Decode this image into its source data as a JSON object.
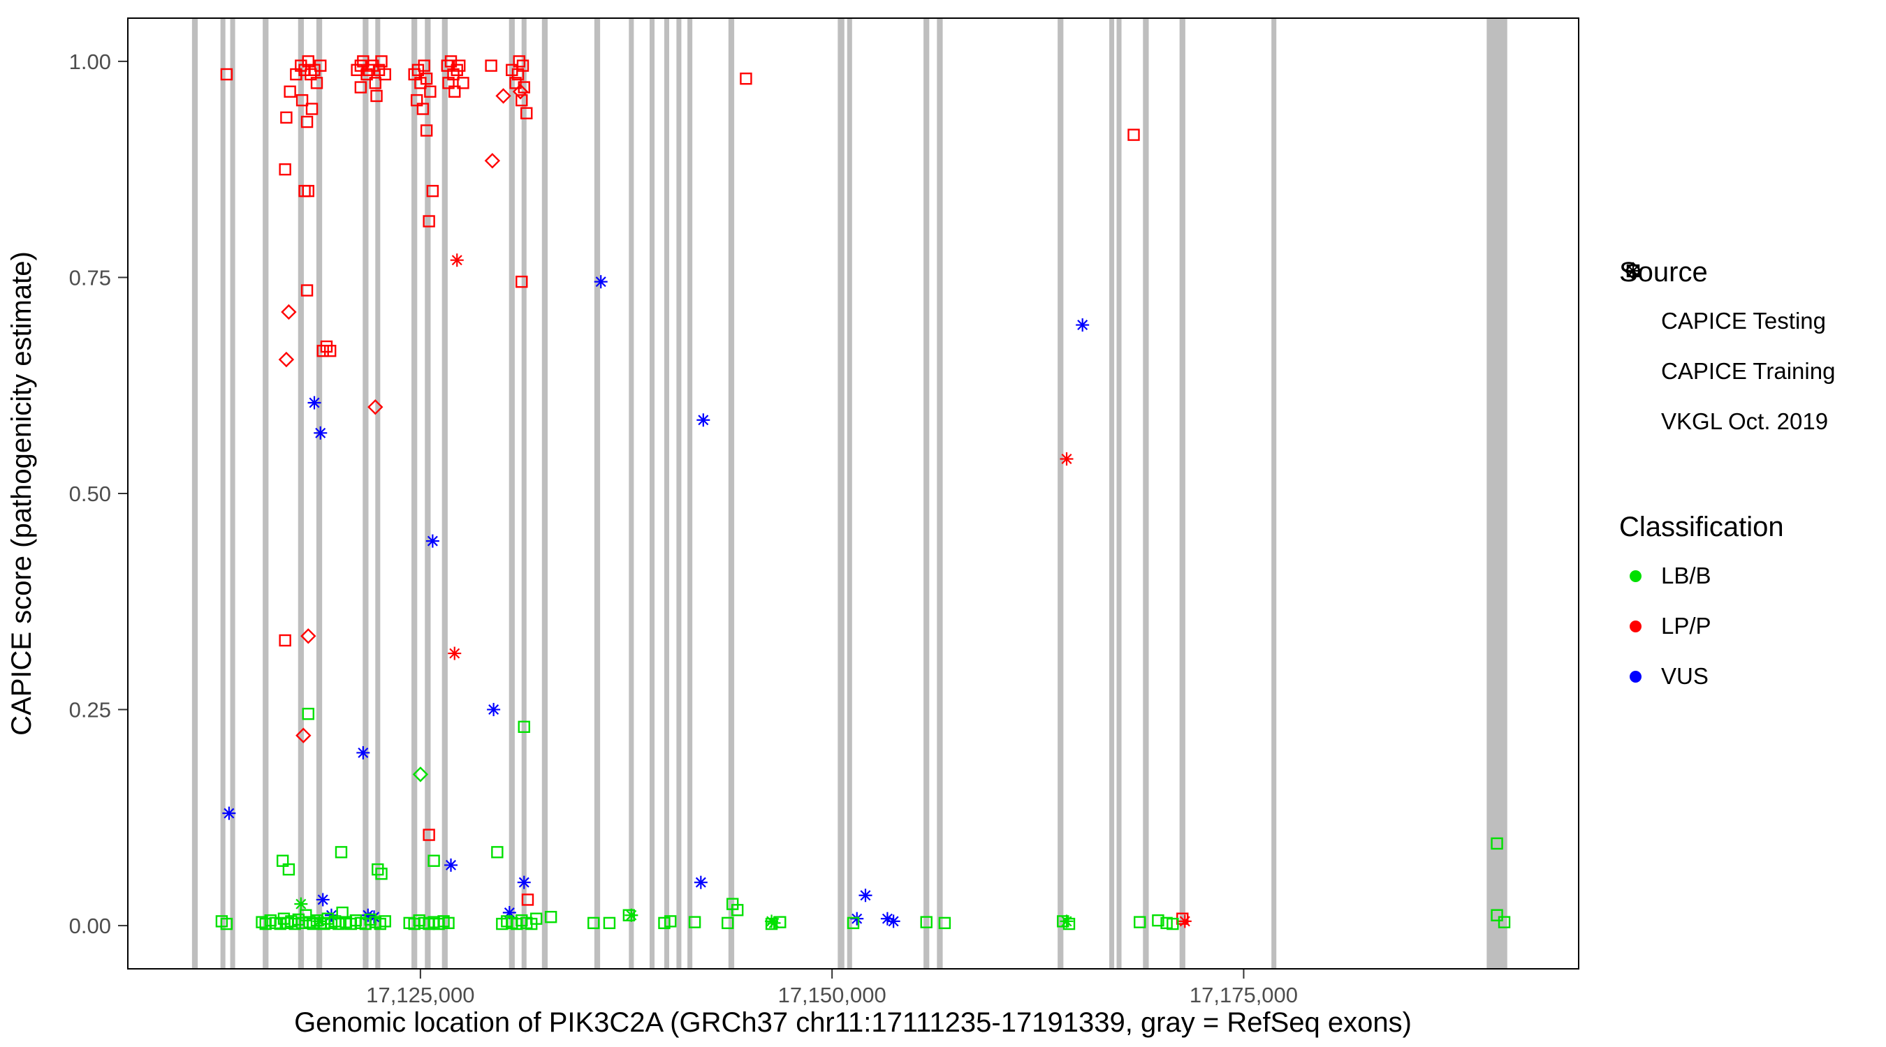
{
  "chart_data": {
    "type": "scatter",
    "title": "",
    "xlabel": "Genomic location of PIK3C2A (GRCh37 chr11:17111235-17191339, gray = RefSeq exons)",
    "ylabel": "CAPICE score (pathogenicity estimate)",
    "xlim": [
      17107230,
      17195344
    ],
    "ylim": [
      -0.05,
      1.05
    ],
    "grid": false,
    "legend_position": "right",
    "axis_text_color": "#4D4D4D",
    "border_color": "#000000",
    "exon_color": "#BEBEBE",
    "x_ticks": [
      {
        "value": 17125000,
        "label": "17,125,000"
      },
      {
        "value": 17150000,
        "label": "17,150,000"
      },
      {
        "value": 17175000,
        "label": "17,175,000"
      }
    ],
    "y_ticks": [
      {
        "value": 0.0,
        "label": "0.00"
      },
      {
        "value": 0.25,
        "label": "0.25"
      },
      {
        "value": 0.5,
        "label": "0.50"
      },
      {
        "value": 0.75,
        "label": "0.75"
      },
      {
        "value": 1.0,
        "label": "1.00"
      }
    ],
    "class_colors": {
      "LB/B": "#00E000",
      "LP/P": "#FF0000",
      "VUS": "#0000FF"
    },
    "shape_for_source": {
      "CAPICE Testing": "di",
      "CAPICE Training": "sq",
      "VKGL Oct. 2019": "as"
    },
    "exons": [
      [
        17111302,
        350
      ],
      [
        17113006,
        300
      ],
      [
        17113598,
        300
      ],
      [
        17115598,
        350
      ],
      [
        17117745,
        350
      ],
      [
        17118856,
        350
      ],
      [
        17121670,
        350
      ],
      [
        17122410,
        300
      ],
      [
        17124631,
        350
      ],
      [
        17125446,
        350
      ],
      [
        17126482,
        350
      ],
      [
        17130555,
        350
      ],
      [
        17131295,
        300
      ],
      [
        17132554,
        350
      ],
      [
        17135738,
        350
      ],
      [
        17137811,
        300
      ],
      [
        17139070,
        300
      ],
      [
        17139958,
        300
      ],
      [
        17140699,
        300
      ],
      [
        17141365,
        300
      ],
      [
        17143883,
        350
      ],
      [
        17150547,
        400
      ],
      [
        17151066,
        300
      ],
      [
        17155730,
        350
      ],
      [
        17156545,
        350
      ],
      [
        17163876,
        350
      ],
      [
        17166986,
        300
      ],
      [
        17167430,
        300
      ],
      [
        17169059,
        350
      ],
      [
        17171280,
        350
      ],
      [
        17176834,
        300
      ],
      [
        17190383,
        1250
      ]
    ],
    "points": [
      [
        17113228,
        0.985,
        "sq",
        "LP/P"
      ],
      [
        17116782,
        0.875,
        "sq",
        "LP/P"
      ],
      [
        17116782,
        0.33,
        "sq",
        "LP/P"
      ],
      [
        17116856,
        0.935,
        "sq",
        "LP/P"
      ],
      [
        17117078,
        0.965,
        "sq",
        "LP/P"
      ],
      [
        17117448,
        0.985,
        "sq",
        "LP/P"
      ],
      [
        17117744,
        0.995,
        "sq",
        "LP/P"
      ],
      [
        17117818,
        0.955,
        "sq",
        "LP/P"
      ],
      [
        17117966,
        0.99,
        "sq",
        "LP/P"
      ],
      [
        17117966,
        0.85,
        "sq",
        "LP/P"
      ],
      [
        17118114,
        0.93,
        "sq",
        "LP/P"
      ],
      [
        17118114,
        0.735,
        "sq",
        "LP/P"
      ],
      [
        17118188,
        1.0,
        "sq",
        "LP/P"
      ],
      [
        17118188,
        0.85,
        "sq",
        "LP/P"
      ],
      [
        17118336,
        0.985,
        "sq",
        "LP/P"
      ],
      [
        17118410,
        0.945,
        "sq",
        "LP/P"
      ],
      [
        17118558,
        0.99,
        "sq",
        "LP/P"
      ],
      [
        17118706,
        0.975,
        "sq",
        "LP/P"
      ],
      [
        17118928,
        0.995,
        "sq",
        "LP/P"
      ],
      [
        17119076,
        0.665,
        "sq",
        "LP/P"
      ],
      [
        17119298,
        0.67,
        "sq",
        "LP/P"
      ],
      [
        17119520,
        0.665,
        "sq",
        "LP/P"
      ],
      [
        17121150,
        0.99,
        "sq",
        "LP/P"
      ],
      [
        17121372,
        0.995,
        "sq",
        "LP/P"
      ],
      [
        17121372,
        0.97,
        "sq",
        "LP/P"
      ],
      [
        17121520,
        1.0,
        "sq",
        "LP/P"
      ],
      [
        17121742,
        0.985,
        "sq",
        "LP/P"
      ],
      [
        17121890,
        0.99,
        "sq",
        "LP/P"
      ],
      [
        17122112,
        0.995,
        "sq",
        "LP/P"
      ],
      [
        17122260,
        0.975,
        "sq",
        "LP/P"
      ],
      [
        17122334,
        0.96,
        "sq",
        "LP/P"
      ],
      [
        17122482,
        0.99,
        "sq",
        "LP/P"
      ],
      [
        17122630,
        1.0,
        "sq",
        "LP/P"
      ],
      [
        17122852,
        0.985,
        "sq",
        "LP/P"
      ],
      [
        17124632,
        0.985,
        "sq",
        "LP/P"
      ],
      [
        17124780,
        0.955,
        "sq",
        "LP/P"
      ],
      [
        17124854,
        0.99,
        "sq",
        "LP/P"
      ],
      [
        17125002,
        0.975,
        "sq",
        "LP/P"
      ],
      [
        17125150,
        0.945,
        "sq",
        "LP/P"
      ],
      [
        17125224,
        0.995,
        "sq",
        "LP/P"
      ],
      [
        17125372,
        0.98,
        "sq",
        "LP/P"
      ],
      [
        17125372,
        0.92,
        "sq",
        "LP/P"
      ],
      [
        17125520,
        0.815,
        "sq",
        "LP/P"
      ],
      [
        17125520,
        0.105,
        "sq",
        "LP/P"
      ],
      [
        17125594,
        0.965,
        "sq",
        "LP/P"
      ],
      [
        17125742,
        0.85,
        "sq",
        "LP/P"
      ],
      [
        17126630,
        0.995,
        "sq",
        "LP/P"
      ],
      [
        17126704,
        0.975,
        "sq",
        "LP/P"
      ],
      [
        17126852,
        1.0,
        "sq",
        "LP/P"
      ],
      [
        17127000,
        0.985,
        "sq",
        "LP/P"
      ],
      [
        17127074,
        0.965,
        "sq",
        "LP/P"
      ],
      [
        17127222,
        0.99,
        "sq",
        "LP/P"
      ],
      [
        17127370,
        0.995,
        "sq",
        "LP/P"
      ],
      [
        17127592,
        0.975,
        "sq",
        "LP/P"
      ],
      [
        17129296,
        0.995,
        "sq",
        "LP/P"
      ],
      [
        17130555,
        0.99,
        "sq",
        "LP/P"
      ],
      [
        17130777,
        0.975,
        "sq",
        "LP/P"
      ],
      [
        17130925,
        0.985,
        "sq",
        "LP/P"
      ],
      [
        17130999,
        1.0,
        "sq",
        "LP/P"
      ],
      [
        17131147,
        0.955,
        "sq",
        "LP/P"
      ],
      [
        17131147,
        0.745,
        "sq",
        "LP/P"
      ],
      [
        17131221,
        0.995,
        "sq",
        "LP/P"
      ],
      [
        17131295,
        0.97,
        "sq",
        "LP/P"
      ],
      [
        17131443,
        0.94,
        "sq",
        "LP/P"
      ],
      [
        17131517,
        0.03,
        "sq",
        "LP/P"
      ],
      [
        17144772,
        0.98,
        "sq",
        "LP/P"
      ],
      [
        17168320,
        0.915,
        "sq",
        "LP/P"
      ],
      [
        17171280,
        0.008,
        "sq",
        "LP/P"
      ],
      [
        17117004,
        0.71,
        "di",
        "LP/P"
      ],
      [
        17116856,
        0.655,
        "di",
        "LP/P"
      ],
      [
        17117892,
        0.22,
        "di",
        "LP/P"
      ],
      [
        17118188,
        0.335,
        "di",
        "LP/P"
      ],
      [
        17122260,
        0.6,
        "di",
        "LP/P"
      ],
      [
        17129370,
        0.885,
        "di",
        "LP/P"
      ],
      [
        17130036,
        0.96,
        "di",
        "LP/P"
      ],
      [
        17131073,
        0.965,
        "di",
        "LP/P"
      ],
      [
        17127222,
        0.77,
        "as",
        "LP/P"
      ],
      [
        17127074,
        0.315,
        "as",
        "LP/P"
      ],
      [
        17164248,
        0.54,
        "as",
        "LP/P"
      ],
      [
        17171430,
        0.005,
        "as",
        "LP/P"
      ],
      [
        17113376,
        0.13,
        "as",
        "VUS"
      ],
      [
        17118558,
        0.605,
        "as",
        "VUS"
      ],
      [
        17118928,
        0.57,
        "as",
        "VUS"
      ],
      [
        17121520,
        0.2,
        "as",
        "VUS"
      ],
      [
        17125742,
        0.445,
        "as",
        "VUS"
      ],
      [
        17126852,
        0.07,
        "as",
        "VUS"
      ],
      [
        17129444,
        0.25,
        "as",
        "VUS"
      ],
      [
        17130407,
        0.015,
        "as",
        "VUS"
      ],
      [
        17131295,
        0.05,
        "as",
        "VUS"
      ],
      [
        17135960,
        0.745,
        "as",
        "VUS"
      ],
      [
        17142032,
        0.05,
        "as",
        "VUS"
      ],
      [
        17142180,
        0.585,
        "as",
        "VUS"
      ],
      [
        17151510,
        0.008,
        "as",
        "VUS"
      ],
      [
        17152029,
        0.035,
        "as",
        "VUS"
      ],
      [
        17153362,
        0.008,
        "as",
        "VUS"
      ],
      [
        17153732,
        0.005,
        "as",
        "VUS"
      ],
      [
        17165210,
        0.695,
        "as",
        "VUS"
      ],
      [
        17119076,
        0.03,
        "as",
        "VUS"
      ],
      [
        17119594,
        0.012,
        "as",
        "VUS"
      ],
      [
        17122186,
        0.01,
        "as",
        "VUS"
      ],
      [
        17121816,
        0.012,
        "as",
        "VUS"
      ],
      [
        17116634,
        0.075,
        "sq",
        "LB/B"
      ],
      [
        17117004,
        0.065,
        "sq",
        "LB/B"
      ],
      [
        17118188,
        0.245,
        "sq",
        "LB/B"
      ],
      [
        17120190,
        0.085,
        "sq",
        "LB/B"
      ],
      [
        17122408,
        0.065,
        "sq",
        "LB/B"
      ],
      [
        17122630,
        0.06,
        "sq",
        "LB/B"
      ],
      [
        17125816,
        0.075,
        "sq",
        "LB/B"
      ],
      [
        17129666,
        0.085,
        "sq",
        "LB/B"
      ],
      [
        17131295,
        0.23,
        "sq",
        "LB/B"
      ],
      [
        17190383,
        0.095,
        "sq",
        "LB/B"
      ],
      [
        17143957,
        0.025,
        "sq",
        "LB/B"
      ],
      [
        17144253,
        0.018,
        "sq",
        "LB/B"
      ],
      [
        17125002,
        0.175,
        "di",
        "LB/B"
      ],
      [
        17117744,
        0.025,
        "as",
        "LB/B"
      ],
      [
        17137811,
        0.012,
        "as",
        "LB/B"
      ],
      [
        17146327,
        0.005,
        "as",
        "LB/B"
      ],
      [
        17164248,
        0.005,
        "as",
        "LB/B"
      ],
      [
        17118854,
        0.005,
        "as",
        "LB/B"
      ],
      [
        17146475,
        0.003,
        "as",
        "LB/B"
      ],
      [
        17112932,
        0.005,
        "sq",
        "LB/B"
      ],
      [
        17113228,
        0.002,
        "sq",
        "LB/B"
      ],
      [
        17115376,
        0.004,
        "sq",
        "LB/B"
      ],
      [
        17115598,
        0.002,
        "sq",
        "LB/B"
      ],
      [
        17115894,
        0.006,
        "sq",
        "LB/B"
      ],
      [
        17116190,
        0.003,
        "sq",
        "LB/B"
      ],
      [
        17116486,
        0.002,
        "sq",
        "LB/B"
      ],
      [
        17116708,
        0.008,
        "sq",
        "LB/B"
      ],
      [
        17116930,
        0.003,
        "sq",
        "LB/B"
      ],
      [
        17117152,
        0.005,
        "sq",
        "LB/B"
      ],
      [
        17117374,
        0.002,
        "sq",
        "LB/B"
      ],
      [
        17117596,
        0.007,
        "sq",
        "LB/B"
      ],
      [
        17117818,
        0.003,
        "sq",
        "LB/B"
      ],
      [
        17118040,
        0.012,
        "sq",
        "LB/B"
      ],
      [
        17118262,
        0.004,
        "sq",
        "LB/B"
      ],
      [
        17118484,
        0.002,
        "sq",
        "LB/B"
      ],
      [
        17118706,
        0.006,
        "sq",
        "LB/B"
      ],
      [
        17118928,
        0.003,
        "sq",
        "LB/B"
      ],
      [
        17119150,
        0.002,
        "sq",
        "LB/B"
      ],
      [
        17119372,
        0.008,
        "sq",
        "LB/B"
      ],
      [
        17119594,
        0.003,
        "sq",
        "LB/B"
      ],
      [
        17119816,
        0.005,
        "sq",
        "LB/B"
      ],
      [
        17120038,
        0.002,
        "sq",
        "LB/B"
      ],
      [
        17120260,
        0.015,
        "sq",
        "LB/B"
      ],
      [
        17120482,
        0.004,
        "sq",
        "LB/B"
      ],
      [
        17120778,
        0.002,
        "sq",
        "LB/B"
      ],
      [
        17121076,
        0.006,
        "sq",
        "LB/B"
      ],
      [
        17121372,
        0.003,
        "sq",
        "LB/B"
      ],
      [
        17121668,
        0.002,
        "sq",
        "LB/B"
      ],
      [
        17121964,
        0.007,
        "sq",
        "LB/B"
      ],
      [
        17122260,
        0.004,
        "sq",
        "LB/B"
      ],
      [
        17122556,
        0.002,
        "sq",
        "LB/B"
      ],
      [
        17122852,
        0.005,
        "sq",
        "LB/B"
      ],
      [
        17124336,
        0.003,
        "sq",
        "LB/B"
      ],
      [
        17124632,
        0.002,
        "sq",
        "LB/B"
      ],
      [
        17124928,
        0.006,
        "sq",
        "LB/B"
      ],
      [
        17125224,
        0.003,
        "sq",
        "LB/B"
      ],
      [
        17125520,
        0.002,
        "sq",
        "LB/B"
      ],
      [
        17125816,
        0.004,
        "sq",
        "LB/B"
      ],
      [
        17126112,
        0.002,
        "sq",
        "LB/B"
      ],
      [
        17126408,
        0.005,
        "sq",
        "LB/B"
      ],
      [
        17126704,
        0.003,
        "sq",
        "LB/B"
      ],
      [
        17129962,
        0.002,
        "sq",
        "LB/B"
      ],
      [
        17130258,
        0.005,
        "sq",
        "LB/B"
      ],
      [
        17130555,
        0.003,
        "sq",
        "LB/B"
      ],
      [
        17130851,
        0.002,
        "sq",
        "LB/B"
      ],
      [
        17131147,
        0.006,
        "sq",
        "LB/B"
      ],
      [
        17131443,
        0.003,
        "sq",
        "LB/B"
      ],
      [
        17131739,
        0.002,
        "sq",
        "LB/B"
      ],
      [
        17132035,
        0.008,
        "sq",
        "LB/B"
      ],
      [
        17132924,
        0.01,
        "sq",
        "LB/B"
      ],
      [
        17135516,
        0.003,
        "sq",
        "LB/B"
      ],
      [
        17136478,
        0.003,
        "sq",
        "LB/B"
      ],
      [
        17137663,
        0.012,
        "sq",
        "LB/B"
      ],
      [
        17139810,
        0.003,
        "sq",
        "LB/B"
      ],
      [
        17140180,
        0.005,
        "sq",
        "LB/B"
      ],
      [
        17141662,
        0.004,
        "sq",
        "LB/B"
      ],
      [
        17143661,
        0.003,
        "sq",
        "LB/B"
      ],
      [
        17146327,
        0.002,
        "sq",
        "LB/B"
      ],
      [
        17146845,
        0.004,
        "sq",
        "LB/B"
      ],
      [
        17151288,
        0.003,
        "sq",
        "LB/B"
      ],
      [
        17155730,
        0.004,
        "sq",
        "LB/B"
      ],
      [
        17156841,
        0.003,
        "sq",
        "LB/B"
      ],
      [
        17164026,
        0.005,
        "sq",
        "LB/B"
      ],
      [
        17164396,
        0.002,
        "sq",
        "LB/B"
      ],
      [
        17168690,
        0.004,
        "sq",
        "LB/B"
      ],
      [
        17169801,
        0.006,
        "sq",
        "LB/B"
      ],
      [
        17170319,
        0.003,
        "sq",
        "LB/B"
      ],
      [
        17170689,
        0.002,
        "sq",
        "LB/B"
      ],
      [
        17190383,
        0.012,
        "sq",
        "LB/B"
      ],
      [
        17190827,
        0.004,
        "sq",
        "LB/B"
      ]
    ]
  },
  "legend": {
    "source": {
      "title": "Source",
      "items": [
        {
          "label": "CAPICE Testing",
          "shape": "diamond"
        },
        {
          "label": "CAPICE Training",
          "shape": "square"
        },
        {
          "label": "VKGL Oct. 2019",
          "shape": "asterisk"
        }
      ]
    },
    "classification": {
      "title": "Classification",
      "items": [
        {
          "label": "LB/B",
          "color": "#00E000"
        },
        {
          "label": "LP/P",
          "color": "#FF0000"
        },
        {
          "label": "VUS",
          "color": "#0000FF"
        }
      ]
    }
  }
}
